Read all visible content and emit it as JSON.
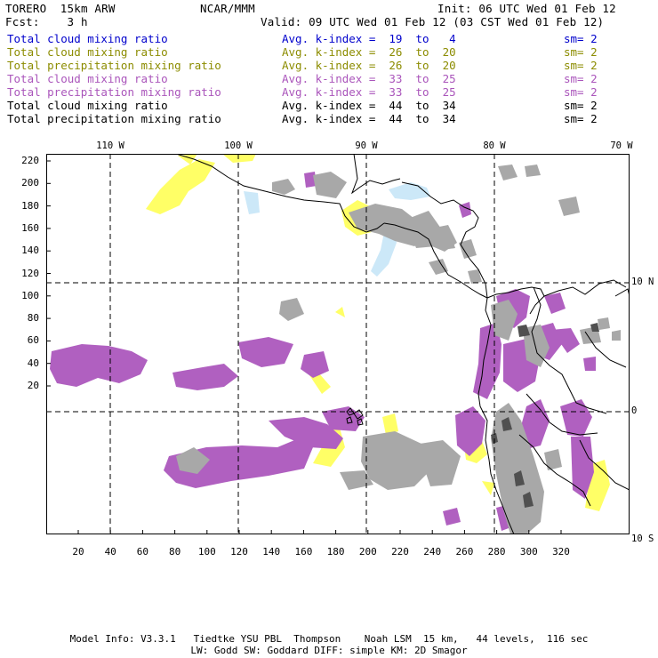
{
  "header": {
    "model": "TORERO  15km ARW",
    "org": "NCAR/MMM",
    "init": "Init: 06 UTC Wed 01 Feb 12",
    "fcst": "Fcst:    3 h",
    "valid": "Valid: 09 UTC Wed 01 Feb 12 (03 CST Wed 01 Feb 12)"
  },
  "legend": [
    {
      "field": "Total cloud mixing ratio",
      "index": "Avg. k-index =  19  to   4",
      "sm": "sm= 2",
      "color": "#0000cc"
    },
    {
      "field": "Total cloud mixing ratio",
      "index": "Avg. k-index =  26  to  20",
      "sm": "sm= 2",
      "color": "#8c8c00"
    },
    {
      "field": "Total precipitation mixing ratio",
      "index": "Avg. k-index =  26  to  20",
      "sm": "sm= 2",
      "color": "#8c8c00"
    },
    {
      "field": "Total cloud mixing ratio",
      "index": "Avg. k-index =  33  to  25",
      "sm": "sm= 2",
      "color": "#aa55bb"
    },
    {
      "field": "Total precipitation mixing ratio",
      "index": "Avg. k-index =  33  to  25",
      "sm": "sm= 2",
      "color": "#aa55bb"
    },
    {
      "field": "Total cloud mixing ratio",
      "index": "Avg. k-index =  44  to  34",
      "sm": "sm= 2",
      "color": "#000000"
    },
    {
      "field": "Total precipitation mixing ratio",
      "index": "Avg. k-index =  44  to  34",
      "sm": "sm= 2",
      "color": "#000000"
    }
  ],
  "axes": {
    "y_ticks": [
      "220",
      "200",
      "180",
      "160",
      "140",
      "120",
      "100",
      "80",
      "60",
      "40",
      "20"
    ],
    "x_ticks": [
      "20",
      "40",
      "60",
      "80",
      "100",
      "120",
      "140",
      "160",
      "180",
      "200",
      "220",
      "240",
      "260",
      "280",
      "300",
      "320"
    ],
    "lon_labels": [
      "110 W",
      "100 W",
      "90 W",
      "80 W",
      "70 W"
    ],
    "lat_labels": [
      "10 N",
      "0",
      "10 S"
    ]
  },
  "footer": {
    "line1": "Model Info: V3.3.1   Tiedtke YSU PBL  Thompson    Noah LSM  15 km,   44 levels,  116 sec",
    "line2": "LW: Godd SW: Goddard DIFF: simple KM: 2D Smagor"
  },
  "colors": {
    "cloud_light": "#cce8f8",
    "yellow": "#ffff66",
    "purple": "#b060c0",
    "gray": "#a8a8a8",
    "dark": "#505050"
  }
}
